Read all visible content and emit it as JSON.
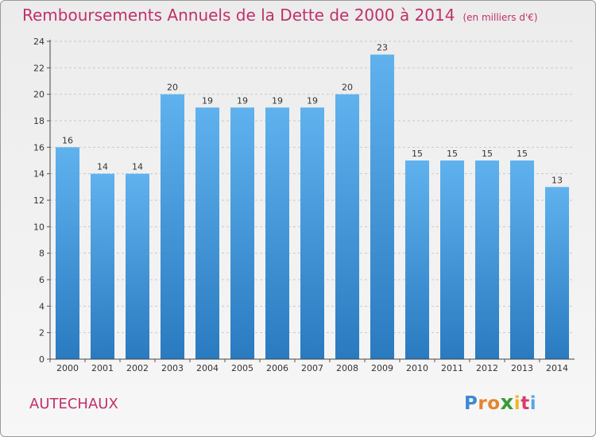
{
  "title": "Remboursements Annuels de la Dette de 2000 à 2014",
  "unit": "(en milliers d'€)",
  "commune": "AUTECHAUX",
  "logo": "Proxiti",
  "chart_data": {
    "type": "bar",
    "title": "Remboursements Annuels de la Dette de 2000 à 2014",
    "subtitle": "(en milliers d'€)",
    "categories": [
      "2000",
      "2001",
      "2002",
      "2003",
      "2004",
      "2005",
      "2006",
      "2007",
      "2008",
      "2009",
      "2010",
      "2011",
      "2012",
      "2013",
      "2014"
    ],
    "values": [
      16,
      14,
      14,
      20,
      19,
      19,
      19,
      19,
      20,
      23,
      15,
      15,
      15,
      15,
      13
    ],
    "ylim": [
      0,
      24
    ],
    "yticks": [
      0,
      2,
      4,
      6,
      8,
      10,
      12,
      14,
      16,
      18,
      20,
      22,
      24
    ],
    "grid": true,
    "bar_color": "#4a9fe0",
    "title_color": "#c0306a"
  }
}
